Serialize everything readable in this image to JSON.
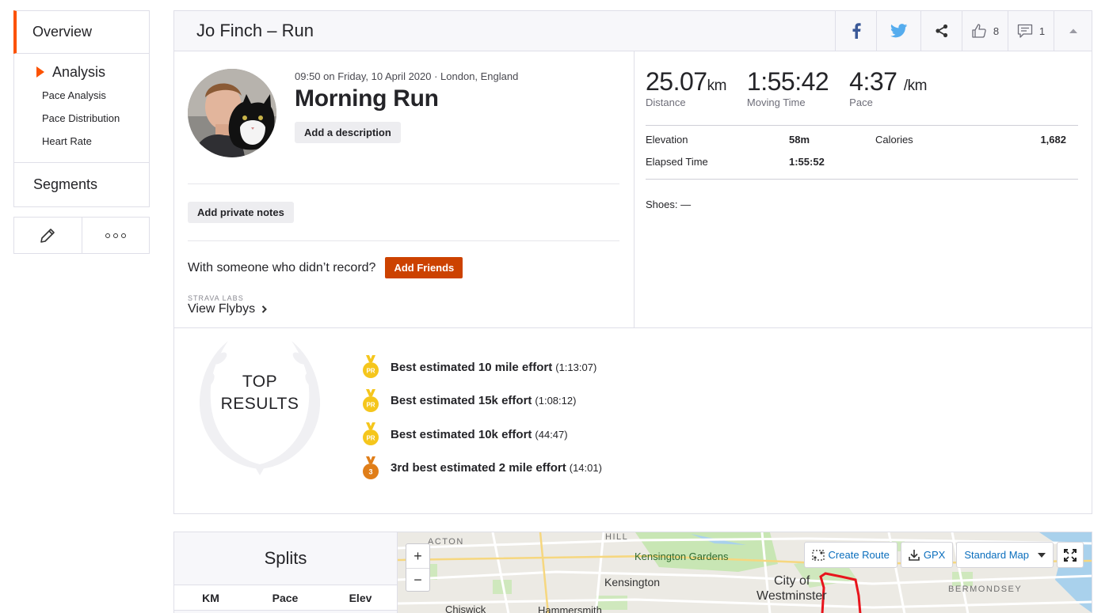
{
  "sidebar": {
    "overview": "Overview",
    "analysis": "Analysis",
    "sub_items": [
      "Pace Analysis",
      "Pace Distribution",
      "Heart Rate"
    ],
    "segments": "Segments"
  },
  "header": {
    "title": "Jo Finch – Run",
    "kudos_count": "8",
    "comments_count": "1"
  },
  "activity": {
    "datetime": "09:50 on Friday, 10 April 2020 · London, England",
    "name": "Morning Run",
    "add_description": "Add a description",
    "add_private_notes": "Add private notes",
    "friends_prompt": "With someone who didn’t record?",
    "add_friends": "Add Friends",
    "labs_label": "STRAVA LABS",
    "labs_link": "View Flybys"
  },
  "stats": {
    "distance_value": "25.07",
    "distance_unit": "km",
    "distance_label": "Distance",
    "moving_time_value": "1:55:42",
    "moving_time_label": "Moving Time",
    "pace_value": "4:37",
    "pace_unit": "/km",
    "pace_label": "Pace",
    "elevation_label": "Elevation",
    "elevation_value": "58m",
    "calories_label": "Calories",
    "calories_value": "1,682",
    "elapsed_label": "Elapsed Time",
    "elapsed_value": "1:55:52",
    "shoes": "Shoes: —"
  },
  "top_results": {
    "line1": "TOP",
    "line2": "RESULTS",
    "items": [
      {
        "badge": "PR",
        "name": "Best estimated 10 mile effort",
        "time": "(1:13:07)"
      },
      {
        "badge": "PR",
        "name": "Best estimated 15k effort",
        "time": "(1:08:12)"
      },
      {
        "badge": "PR",
        "name": "Best estimated 10k effort",
        "time": "(44:47)"
      },
      {
        "badge": "3",
        "name": "3rd best estimated 2 mile effort",
        "time": "(14:01)"
      }
    ]
  },
  "splits": {
    "title": "Splits",
    "columns": [
      "KM",
      "Pace",
      "Elev"
    ]
  },
  "map": {
    "zoom_in": "+",
    "zoom_out": "−",
    "create_route": "Create Route",
    "gpx": "GPX",
    "map_style": "Standard Map",
    "labels": {
      "acton": "ACTON",
      "hill": "HILL",
      "kensington_gardens": "Kensington Gardens",
      "kensington": "Kensington",
      "city_of": "City of",
      "westminster": "Westminster",
      "bermondsey": "BERMONDSEY",
      "chiswick": "Chiswick",
      "hammersmith": "Hammersmith"
    }
  },
  "colors": {
    "brand_orange": "#fc5200",
    "button_orange": "#cc4200",
    "medal_gold": "#f5c61c",
    "medal_bronze": "#e07e19",
    "route_red": "#e8141c"
  }
}
